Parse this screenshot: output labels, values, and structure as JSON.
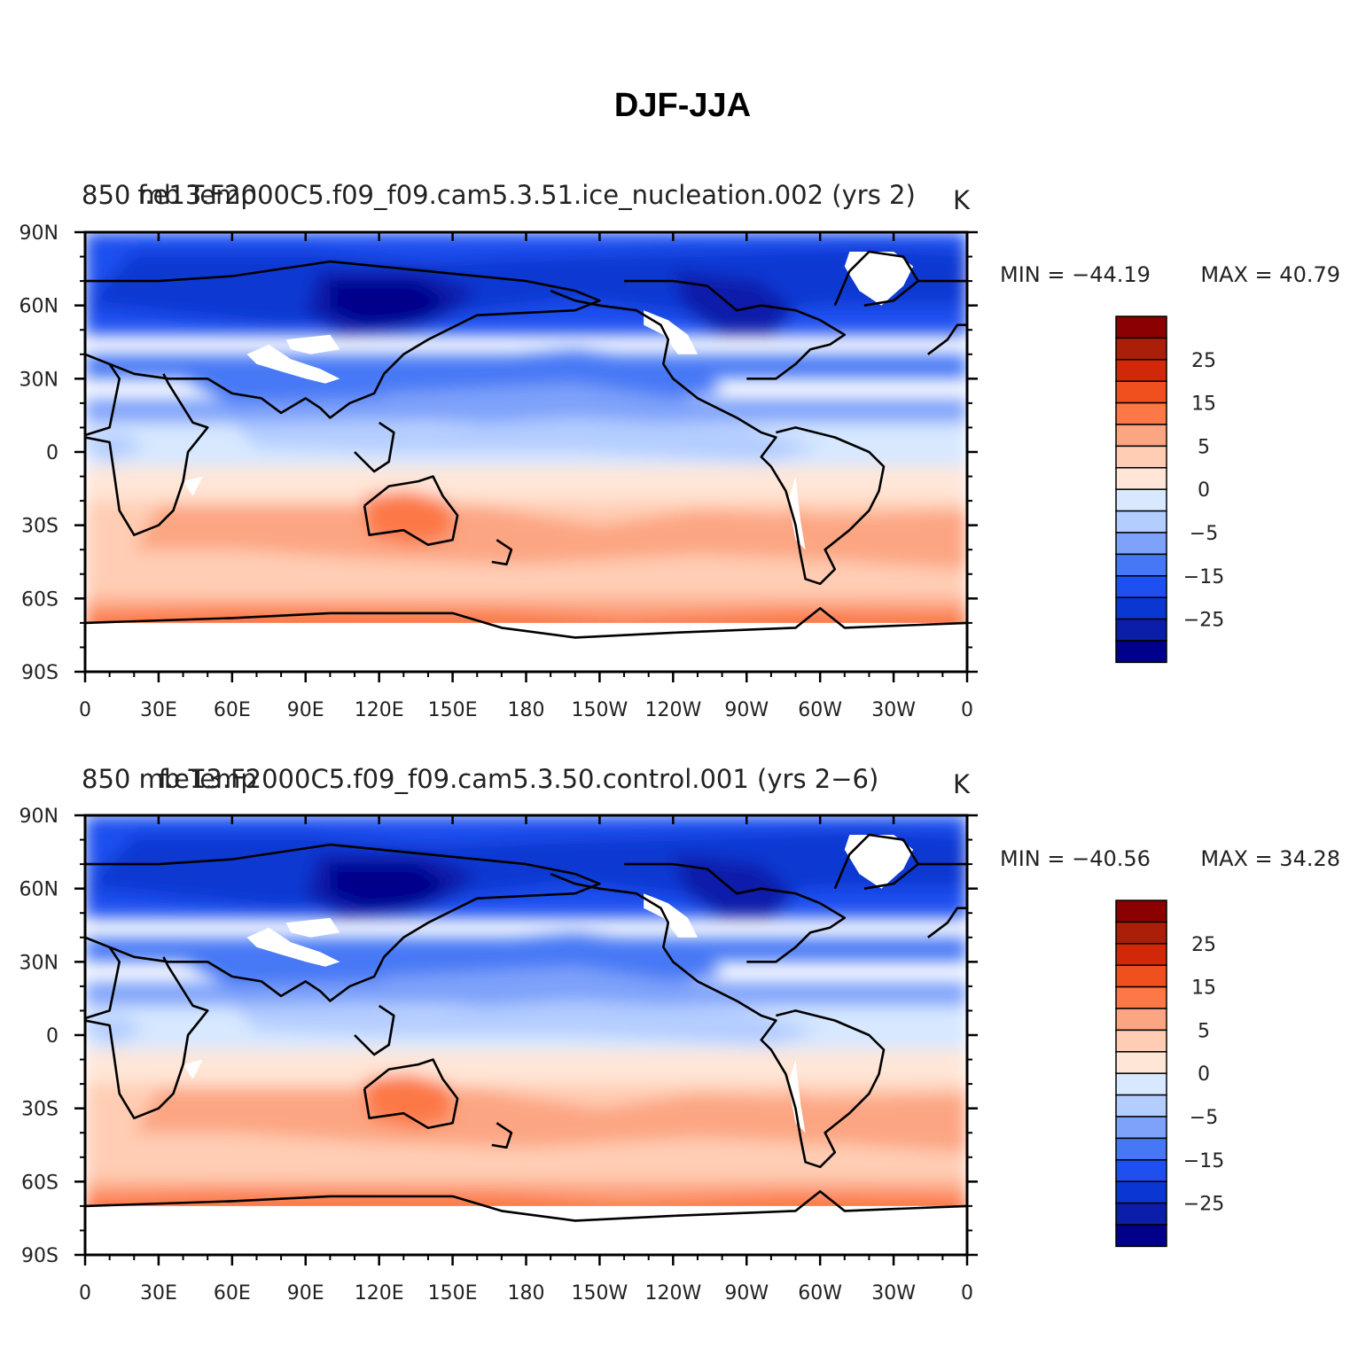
{
  "page": {
    "title": "DJF-JJA"
  },
  "colorbar": {
    "colors": [
      "#00008b",
      "#0a1eaa",
      "#0a37d2",
      "#1e50f0",
      "#4678f5",
      "#7ea2fa",
      "#b4cdff",
      "#d7e8ff",
      "#ffe6d7",
      "#ffcdb4",
      "#fca582",
      "#fc7846",
      "#f0501e",
      "#d2280a",
      "#aa1e0a",
      "#8b0000"
    ],
    "tick_labels": [
      "25",
      "15",
      "5",
      "0",
      "−5",
      "−15",
      "−25"
    ]
  },
  "chart_data": [
    {
      "type": "heatmap",
      "projection": "cylindrical-equidistant",
      "title_left": "850 mb Temp",
      "title_center": "f.e13.F2000C5.f09_f09.cam5.3.51.ice_nucleation.002 (yrs 2)",
      "title_right": "K",
      "variable": "850 mb Temperature, DJF minus JJA",
      "units": "K",
      "x_ticks": [
        "0",
        "30E",
        "60E",
        "90E",
        "120E",
        "150E",
        "180",
        "150W",
        "120W",
        "90W",
        "60W",
        "30W",
        "0"
      ],
      "y_ticks": [
        "90N",
        "60N",
        "30N",
        "0",
        "30S",
        "60S",
        "90S"
      ],
      "xlim": [
        0,
        360
      ],
      "ylim": [
        -90,
        90
      ],
      "min_label": "MIN = −44.19",
      "max_label": "MAX =   40.79",
      "min": -44.19,
      "max": 40.79,
      "contour_levels": [
        -35,
        -30,
        -25,
        -20,
        -15,
        -10,
        -5,
        0,
        5,
        10,
        15,
        20,
        25,
        30,
        35
      ]
    },
    {
      "type": "heatmap",
      "projection": "cylindrical-equidistant",
      "title_left": "850 mb Temp",
      "title_center": "f.e13.F2000C5.f09_f09.cam5.3.50.control.001 (yrs 2−6)",
      "title_right": "K",
      "variable": "850 mb Temperature, DJF minus JJA",
      "units": "K",
      "x_ticks": [
        "0",
        "30E",
        "60E",
        "90E",
        "120E",
        "150E",
        "180",
        "150W",
        "120W",
        "90W",
        "60W",
        "30W",
        "0"
      ],
      "y_ticks": [
        "90N",
        "60N",
        "30N",
        "0",
        "30S",
        "60S",
        "90S"
      ],
      "xlim": [
        0,
        360
      ],
      "ylim": [
        -90,
        90
      ],
      "min_label": "MIN = −40.56",
      "max_label": "MAX =   34.28",
      "min": -40.56,
      "max": 34.28,
      "contour_levels": [
        -35,
        -30,
        -25,
        -20,
        -15,
        -10,
        -5,
        0,
        5,
        10,
        15,
        20,
        25,
        30,
        35
      ]
    }
  ]
}
